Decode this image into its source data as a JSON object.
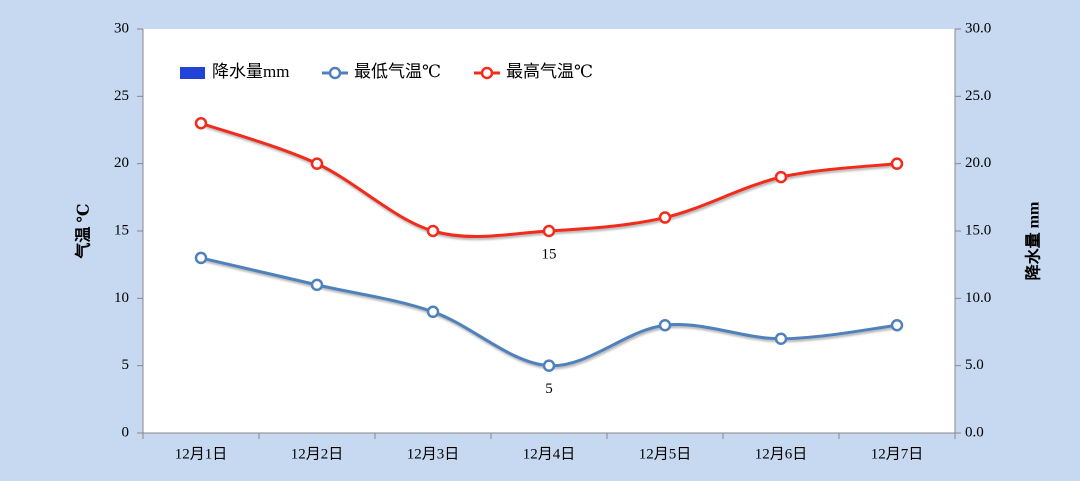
{
  "chart_data": {
    "type": "line",
    "categories": [
      "12月1日",
      "12月2日",
      "12月3日",
      "12月4日",
      "12月5日",
      "12月6日",
      "12月7日"
    ],
    "series": [
      {
        "name": "降水量mm",
        "color": "#2342d8",
        "axis": "y2",
        "kind": "bar",
        "values": [
          null,
          null,
          null,
          null,
          null,
          null,
          null
        ]
      },
      {
        "name": "最低气温℃",
        "color": "#4f81bd",
        "values": [
          13,
          11,
          9,
          5,
          8,
          7,
          8
        ],
        "labels_at": [
          3
        ]
      },
      {
        "name": "最高气温℃",
        "color": "#f22b1b",
        "values": [
          23,
          20,
          15,
          15,
          16,
          19,
          20
        ],
        "labels_at": [
          3
        ]
      }
    ],
    "ylabel": "气温 ℃",
    "y2label": "降水量 mm",
    "ylim": [
      0,
      30
    ],
    "yticks": [
      0,
      5,
      10,
      15,
      20,
      25,
      30
    ],
    "y2lim": [
      0,
      30
    ],
    "y2ticks": [
      {
        "value": 0,
        "label": "0.0"
      },
      {
        "value": 5,
        "label": "5.0"
      },
      {
        "value": 10,
        "label": "10.0"
      },
      {
        "value": 15,
        "label": "15.0"
      },
      {
        "value": 20,
        "label": "20.0"
      },
      {
        "value": 25,
        "label": "25.0"
      },
      {
        "value": 30,
        "label": "30.0"
      }
    ],
    "legend": "top-left",
    "grid": false
  }
}
